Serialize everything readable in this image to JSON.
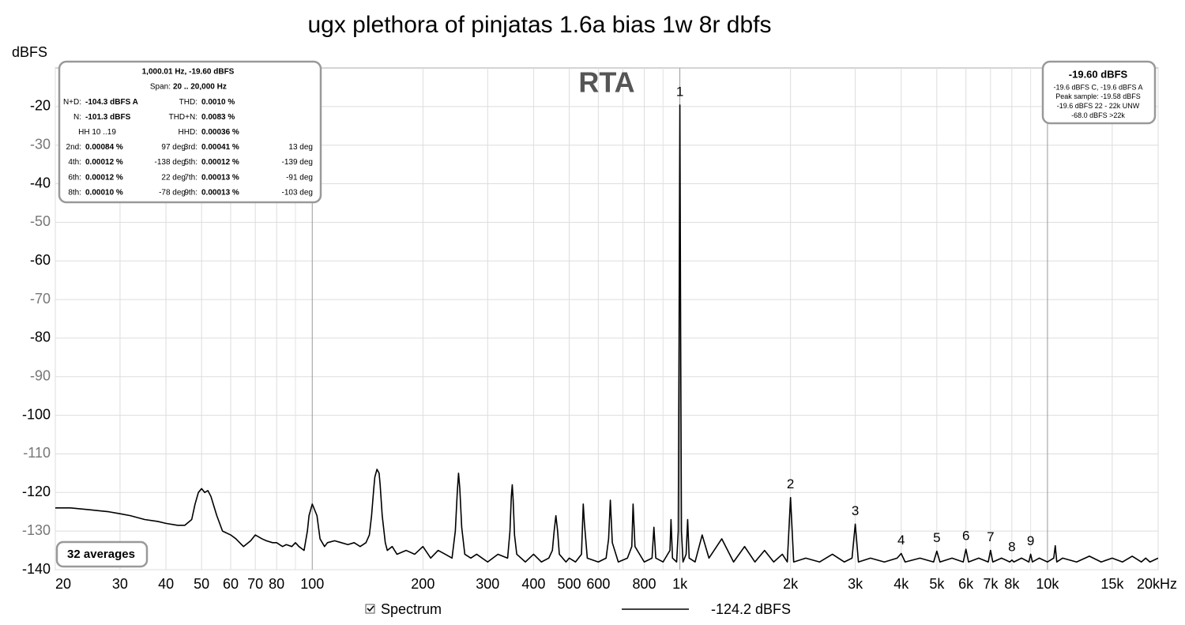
{
  "chart_data": {
    "type": "line",
    "title": "ugx plethora of pinjatas 1.6a bias 1w 8r dbfs",
    "y_label": "dBFS",
    "watermark": "RTA",
    "averages_label": "32 averages",
    "legend_reading": "-124.2 dBFS",
    "x_scale": "log",
    "grid": true,
    "xlim": [
      20,
      20000
    ],
    "ylim": [
      -140,
      -10
    ],
    "yticks": [
      -140,
      -130,
      -120,
      -110,
      -100,
      -90,
      -80,
      -70,
      -60,
      -50,
      -40,
      -30,
      -20
    ],
    "xticks": [
      20,
      30,
      40,
      50,
      60,
      70,
      80,
      100,
      200,
      300,
      400,
      500,
      600,
      800,
      {
        "value": 1000,
        "label": "1k"
      },
      {
        "value": 2000,
        "label": "2k"
      },
      {
        "value": 3000,
        "label": "3k"
      },
      {
        "value": 4000,
        "label": "4k"
      },
      {
        "value": 5000,
        "label": "5k"
      },
      {
        "value": 6000,
        "label": "6k"
      },
      {
        "value": 7000,
        "label": "7k"
      },
      {
        "value": 8000,
        "label": "8k"
      },
      {
        "value": 10000,
        "label": "10k"
      },
      {
        "value": 15000,
        "label": "15k"
      },
      {
        "value": 20000,
        "label": "20kHz"
      }
    ],
    "x_minor_grid": [
      90,
      700,
      900,
      9000
    ],
    "x": [
      20,
      22,
      25,
      28,
      30,
      32,
      35,
      38,
      40,
      43,
      45,
      47,
      48,
      49,
      50,
      51,
      52,
      53,
      55,
      57,
      60,
      62,
      65,
      68,
      70,
      73,
      75,
      78,
      80,
      83,
      85,
      88,
      90,
      92,
      95,
      97,
      98,
      100,
      101,
      103,
      105,
      108,
      110,
      115,
      120,
      125,
      130,
      135,
      140,
      143,
      145,
      147,
      148,
      150,
      152,
      153,
      155,
      158,
      160,
      165,
      170,
      180,
      190,
      200,
      210,
      220,
      230,
      240,
      245,
      248,
      250,
      252,
      255,
      260,
      270,
      280,
      300,
      320,
      340,
      345,
      348,
      350,
      352,
      355,
      360,
      380,
      400,
      420,
      440,
      450,
      455,
      460,
      465,
      470,
      490,
      500,
      520,
      540,
      546,
      550,
      560,
      600,
      630,
      640,
      647,
      655,
      680,
      720,
      740,
      746,
      755,
      800,
      840,
      850,
      860,
      900,
      940,
      946,
      955,
      980,
      990,
      995,
      1000,
      1005,
      1010,
      1020,
      1040,
      1050,
      1060,
      1100,
      1150,
      1200,
      1300,
      1400,
      1500,
      1600,
      1700,
      1800,
      1900,
      1960,
      2000,
      2040,
      2200,
      2400,
      2600,
      2800,
      2940,
      3000,
      3060,
      3300,
      3600,
      3900,
      4000,
      4100,
      4500,
      4900,
      5000,
      5100,
      5500,
      5900,
      6000,
      6100,
      6500,
      6900,
      7000,
      7100,
      7500,
      7900,
      8000,
      8100,
      8500,
      8900,
      9000,
      9100,
      9500,
      10000,
      10400,
      10500,
      10600,
      11000,
      12000,
      13000,
      14000,
      15000,
      16000,
      17000,
      18000,
      18500,
      19000,
      20000
    ],
    "series": [
      {
        "name": "Spectrum",
        "color": "#000000",
        "values": [
          -124,
          -124,
          -124.5,
          -125,
          -125.5,
          -126,
          -127,
          -127.5,
          -128,
          -128.5,
          -128.5,
          -127,
          -123,
          -120,
          -119,
          -120,
          -119.5,
          -121,
          -126,
          -130,
          -131,
          -132,
          -134,
          -132.5,
          -131,
          -132,
          -132.5,
          -133,
          -133,
          -134,
          -133.5,
          -134,
          -133,
          -134,
          -135,
          -130,
          -126,
          -123,
          -124,
          -126,
          -132,
          -134,
          -133,
          -132.5,
          -133,
          -133.5,
          -133,
          -134,
          -133,
          -131,
          -126,
          -119,
          -116,
          -114,
          -115,
          -118,
          -126,
          -133,
          -135,
          -134,
          -136,
          -135,
          -136,
          -134,
          -137,
          -135,
          -136,
          -137,
          -130,
          -120,
          -115,
          -119,
          -129,
          -136,
          -137,
          -136,
          -138,
          -136,
          -137,
          -130,
          -121,
          -118,
          -122,
          -131,
          -136,
          -138,
          -136,
          -138,
          -137,
          -135,
          -130,
          -126,
          -130,
          -136,
          -138,
          -137,
          -138,
          -136,
          -123,
          -128,
          -137,
          -138,
          -137,
          -132,
          -122,
          -133,
          -138,
          -137,
          -134,
          -123,
          -134,
          -138,
          -137,
          -129,
          -137,
          -138,
          -135,
          -127,
          -137,
          -138,
          -130,
          -80,
          -19.6,
          -80,
          -130,
          -138,
          -136,
          -127,
          -137,
          -138,
          -131,
          -137,
          -132,
          -138,
          -134,
          -138,
          -135,
          -138,
          -136,
          -138,
          -121.3,
          -138,
          -137,
          -138,
          -136,
          -138,
          -137,
          -128.2,
          -138,
          -137,
          -138,
          -137,
          -135.8,
          -138,
          -137,
          -138,
          -135.2,
          -138,
          -137,
          -138,
          -134.7,
          -138,
          -137,
          -138,
          -135,
          -138,
          -137,
          -138,
          -137.5,
          -138,
          -137,
          -138,
          -136,
          -138,
          -137,
          -138,
          -137,
          -133.8,
          -138,
          -137,
          -138,
          -136.5,
          -138,
          -137,
          -138,
          -136.5,
          -138,
          -137,
          -138,
          -137
        ]
      }
    ],
    "harmonic_markers": {
      "labels": [
        1,
        2,
        3,
        4,
        5,
        6,
        7,
        8,
        9
      ],
      "x": [
        1000,
        2000,
        3000,
        4000,
        5000,
        6000,
        7000,
        8000,
        9000
      ],
      "values": [
        -19.6,
        -121.3,
        -128.2,
        -135.8,
        -135.2,
        -134.7,
        -135,
        -137.5,
        -136
      ]
    },
    "measurement_panel": {
      "header": "1,000.01 Hz, -19.60 dBFS",
      "span": [
        "Span:",
        "20 .. 20,000 Hz"
      ],
      "rows": [
        {
          "left": [
            "N+D:",
            "-104.3 dBFS A"
          ],
          "right": [
            "THD:",
            "0.0010 %"
          ]
        },
        {
          "left": [
            "N:",
            "-101.3 dBFS"
          ],
          "right": [
            "THD+N:",
            "0.0083 %"
          ]
        },
        {
          "left": [
            "HH 10 ..19"
          ],
          "right": [
            "HHD:",
            "0.00036 %"
          ]
        },
        {
          "left": [
            "2nd:",
            "0.00084 %",
            "97 deg"
          ],
          "right": [
            "3rd:",
            "0.00041 %",
            "13 deg"
          ]
        },
        {
          "left": [
            "4th:",
            "0.00012 %",
            "-138 deg"
          ],
          "right": [
            "5th:",
            "0.00012 %",
            "-139 deg"
          ]
        },
        {
          "left": [
            "6th:",
            "0.00012 %",
            "22 deg"
          ],
          "right": [
            "7th:",
            "0.00013 %",
            "-91 deg"
          ]
        },
        {
          "left": [
            "8th:",
            "0.00010 %",
            "-78 deg"
          ],
          "right": [
            "9th:",
            "0.00013 %",
            "-103 deg"
          ]
        }
      ]
    },
    "level_panel": {
      "headline": "-19.60 dBFS",
      "lines": [
        "-19.6 dBFS C, -19.6 dBFS A",
        "Peak sample: -19.58 dBFS",
        "-19.6 dBFS 22 - 22k UNW",
        "-68.0 dBFS >22k"
      ]
    }
  }
}
